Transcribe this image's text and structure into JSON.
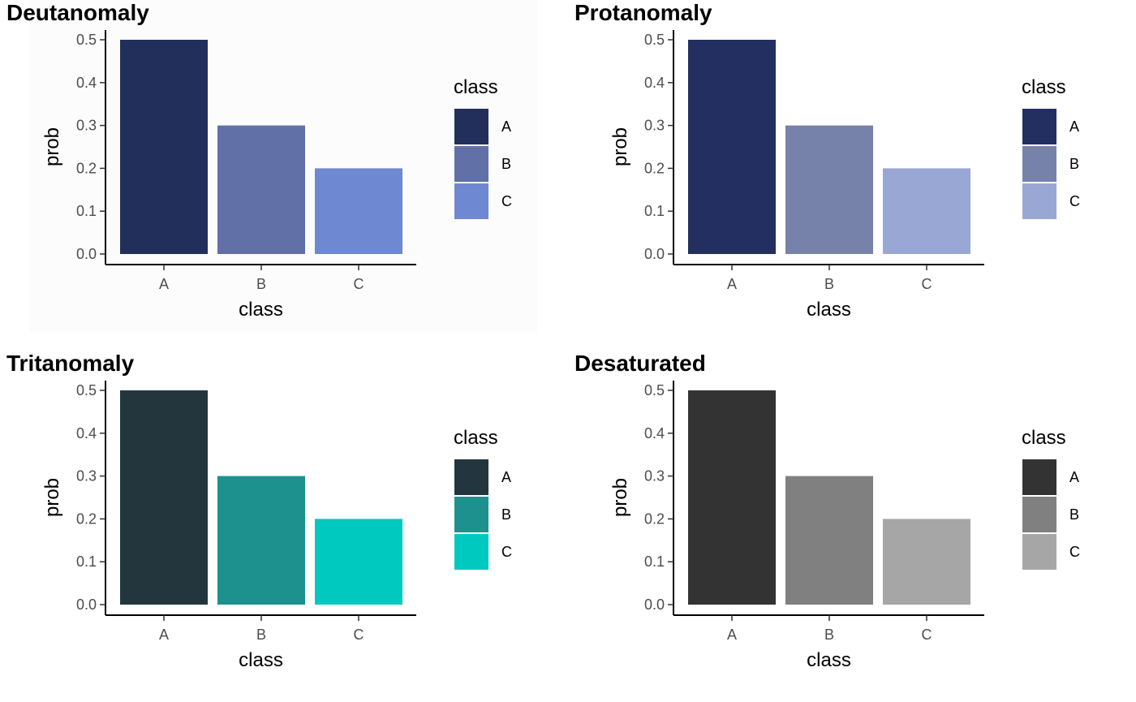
{
  "chart_data": [
    {
      "type": "bar",
      "title": "Deutanomaly",
      "xlabel": "class",
      "ylabel": "prob",
      "categories": [
        "A",
        "B",
        "C"
      ],
      "values": [
        0.5,
        0.3,
        0.2
      ],
      "ylim": [
        0,
        0.5
      ],
      "yticks": [
        "0.0",
        "0.1",
        "0.2",
        "0.3",
        "0.4",
        "0.5"
      ],
      "colors": [
        "#232F5B",
        "#6170A7",
        "#6F88D2"
      ],
      "legend": {
        "title": "class",
        "labels": [
          "A",
          "B",
          "C"
        ],
        "position": "right"
      },
      "grid": false
    },
    {
      "type": "bar",
      "title": "Protanomaly",
      "xlabel": "class",
      "ylabel": "prob",
      "categories": [
        "A",
        "B",
        "C"
      ],
      "values": [
        0.5,
        0.3,
        0.2
      ],
      "ylim": [
        0,
        0.5
      ],
      "yticks": [
        "0.0",
        "0.1",
        "0.2",
        "0.3",
        "0.4",
        "0.5"
      ],
      "colors": [
        "#232F60",
        "#7782AB",
        "#99A7D5"
      ],
      "legend": {
        "title": "class",
        "labels": [
          "A",
          "B",
          "C"
        ],
        "position": "right"
      },
      "grid": false
    },
    {
      "type": "bar",
      "title": "Tritanomaly",
      "xlabel": "class",
      "ylabel": "prob",
      "categories": [
        "A",
        "B",
        "C"
      ],
      "values": [
        0.5,
        0.3,
        0.2
      ],
      "ylim": [
        0,
        0.5
      ],
      "yticks": [
        "0.0",
        "0.1",
        "0.2",
        "0.3",
        "0.4",
        "0.5"
      ],
      "colors": [
        "#23363D",
        "#1D918E",
        "#00C9BF"
      ],
      "legend": {
        "title": "class",
        "labels": [
          "A",
          "B",
          "C"
        ],
        "position": "right"
      },
      "grid": false
    },
    {
      "type": "bar",
      "title": "Desaturated",
      "xlabel": "class",
      "ylabel": "prob",
      "categories": [
        "A",
        "B",
        "C"
      ],
      "values": [
        0.5,
        0.3,
        0.2
      ],
      "ylim": [
        0,
        0.5
      ],
      "yticks": [
        "0.0",
        "0.1",
        "0.2",
        "0.3",
        "0.4",
        "0.5"
      ],
      "colors": [
        "#333333",
        "#808080",
        "#A6A6A6"
      ],
      "legend": {
        "title": "class",
        "labels": [
          "A",
          "B",
          "C"
        ],
        "position": "right"
      },
      "grid": false
    }
  ]
}
